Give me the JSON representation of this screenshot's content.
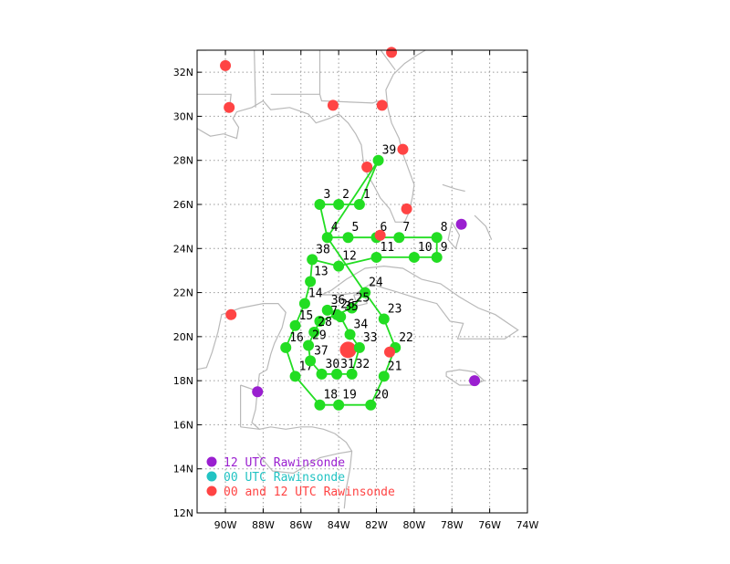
{
  "map": {
    "lon_min": -91.5,
    "lon_max": -74,
    "lat_min": 12,
    "lat_max": 33,
    "grid_color": "#9a9a9a",
    "coast_color": "#b9b9b9",
    "xticks": [
      {
        "lon": -90,
        "label": "90W"
      },
      {
        "lon": -88,
        "label": "88W"
      },
      {
        "lon": -86,
        "label": "86W"
      },
      {
        "lon": -84,
        "label": "84W"
      },
      {
        "lon": -82,
        "label": "82W"
      },
      {
        "lon": -80,
        "label": "80W"
      },
      {
        "lon": -78,
        "label": "78W"
      },
      {
        "lon": -76,
        "label": "76W"
      },
      {
        "lon": -74,
        "label": "74W"
      }
    ],
    "yticks": [
      {
        "lat": 12,
        "label": "12N"
      },
      {
        "lat": 14,
        "label": "14N"
      },
      {
        "lat": 16,
        "label": "16N"
      },
      {
        "lat": 18,
        "label": "18N"
      },
      {
        "lat": 20,
        "label": "20N"
      },
      {
        "lat": 22,
        "label": "22N"
      },
      {
        "lat": 24,
        "label": "24N"
      },
      {
        "lat": 26,
        "label": "26N"
      },
      {
        "lat": 28,
        "label": "28N"
      },
      {
        "lat": 30,
        "label": "30N"
      },
      {
        "lat": 32,
        "label": "32N"
      }
    ]
  },
  "flight_track": {
    "color": "#22dd22",
    "waypoints": [
      {
        "id": "1",
        "lon": -82.9,
        "lat": 26.0
      },
      {
        "id": "2",
        "lon": -84.0,
        "lat": 26.0
      },
      {
        "id": "3",
        "lon": -85.0,
        "lat": 26.0
      },
      {
        "id": "4",
        "lon": -84.6,
        "lat": 24.5
      },
      {
        "id": "5",
        "lon": -83.5,
        "lat": 24.5
      },
      {
        "id": "6",
        "lon": -82.0,
        "lat": 24.5
      },
      {
        "id": "7",
        "lon": -80.8,
        "lat": 24.5
      },
      {
        "id": "8",
        "lon": -78.8,
        "lat": 24.5
      },
      {
        "id": "9",
        "lon": -78.8,
        "lat": 23.6
      },
      {
        "id": "10",
        "lon": -80.0,
        "lat": 23.6
      },
      {
        "id": "11",
        "lon": -82.0,
        "lat": 23.6
      },
      {
        "id": "12",
        "lon": -84.0,
        "lat": 23.2
      },
      {
        "id": "13",
        "lon": -85.5,
        "lat": 22.5
      },
      {
        "id": "14",
        "lon": -85.8,
        "lat": 21.5
      },
      {
        "id": "15",
        "lon": -86.3,
        "lat": 20.5
      },
      {
        "id": "16",
        "lon": -86.8,
        "lat": 19.5
      },
      {
        "id": "17",
        "lon": -86.3,
        "lat": 18.2
      },
      {
        "id": "18",
        "lon": -85.0,
        "lat": 16.9
      },
      {
        "id": "19",
        "lon": -84.0,
        "lat": 16.9
      },
      {
        "id": "20",
        "lon": -82.3,
        "lat": 16.9
      },
      {
        "id": "21",
        "lon": -81.6,
        "lat": 18.2
      },
      {
        "id": "22",
        "lon": -81.0,
        "lat": 19.5
      },
      {
        "id": "23",
        "lon": -81.6,
        "lat": 20.8
      },
      {
        "id": "24",
        "lon": -82.6,
        "lat": 22.0
      },
      {
        "id": "25",
        "lon": -83.3,
        "lat": 21.3
      },
      {
        "id": "26",
        "lon": -84.1,
        "lat": 21.0
      },
      {
        "id": "27",
        "lon": -85.0,
        "lat": 20.7
      },
      {
        "id": "28",
        "lon": -85.3,
        "lat": 20.2
      },
      {
        "id": "29",
        "lon": -85.6,
        "lat": 19.6
      },
      {
        "id": "30",
        "lon": -84.9,
        "lat": 18.3
      },
      {
        "id": "31",
        "lon": -84.1,
        "lat": 18.3
      },
      {
        "id": "32",
        "lon": -83.3,
        "lat": 18.3
      },
      {
        "id": "33",
        "lon": -82.9,
        "lat": 19.5
      },
      {
        "id": "34",
        "lon": -83.4,
        "lat": 20.1
      },
      {
        "id": "35",
        "lon": -83.9,
        "lat": 20.9
      },
      {
        "id": "36",
        "lon": -84.6,
        "lat": 21.2
      },
      {
        "id": "37",
        "lon": -85.5,
        "lat": 18.9
      },
      {
        "id": "38",
        "lon": -85.4,
        "lat": 23.5
      },
      {
        "id": "39",
        "lon": -81.9,
        "lat": 28.0
      }
    ],
    "route": [
      "39",
      "1",
      "2",
      "3",
      "4",
      "5",
      "6",
      "7",
      "8",
      "9",
      "10",
      "11",
      "12",
      "38",
      "13",
      "14",
      "15",
      "16",
      "17",
      "18",
      "19",
      "20",
      "21",
      "22",
      "23",
      "24",
      "25",
      "26",
      "27",
      "28",
      "29",
      "37",
      "30",
      "31",
      "32",
      "33",
      "34",
      "35",
      "36",
      "26",
      "25",
      "24",
      "4",
      "39"
    ]
  },
  "storm_center": {
    "lon": -83.5,
    "lat": 19.4,
    "color": "#ff4444"
  },
  "rawinsondes": [
    {
      "type": "00 and 12",
      "lon": -90.0,
      "lat": 32.3
    },
    {
      "type": "00 and 12",
      "lon": -89.8,
      "lat": 30.4
    },
    {
      "type": "00 and 12",
      "lon": -84.3,
      "lat": 30.5
    },
    {
      "type": "00 and 12",
      "lon": -81.7,
      "lat": 30.5
    },
    {
      "type": "00 and 12",
      "lon": -81.2,
      "lat": 32.9
    },
    {
      "type": "00 and 12",
      "lon": -80.6,
      "lat": 28.5
    },
    {
      "type": "00 and 12",
      "lon": -82.5,
      "lat": 27.7
    },
    {
      "type": "00 and 12",
      "lon": -80.4,
      "lat": 25.8
    },
    {
      "type": "00 and 12",
      "lon": -81.8,
      "lat": 24.6
    },
    {
      "type": "00 and 12",
      "lon": -89.7,
      "lat": 21.0
    },
    {
      "type": "00 and 12",
      "lon": -81.3,
      "lat": 19.3
    },
    {
      "type": "12",
      "lon": -77.5,
      "lat": 25.1
    },
    {
      "type": "12",
      "lon": -76.8,
      "lat": 18.0
    },
    {
      "type": "12",
      "lon": -88.3,
      "lat": 17.5
    }
  ],
  "legend": [
    {
      "key": "12",
      "label": "12 UTC Rawinsonde",
      "color": "#9a1fd0"
    },
    {
      "key": "00",
      "label": "00 UTC Rawinsonde",
      "color": "#22c3c3"
    },
    {
      "key": "00 and 12",
      "label": "00 and 12 UTC Rawinsonde",
      "color": "#ff4444"
    }
  ]
}
